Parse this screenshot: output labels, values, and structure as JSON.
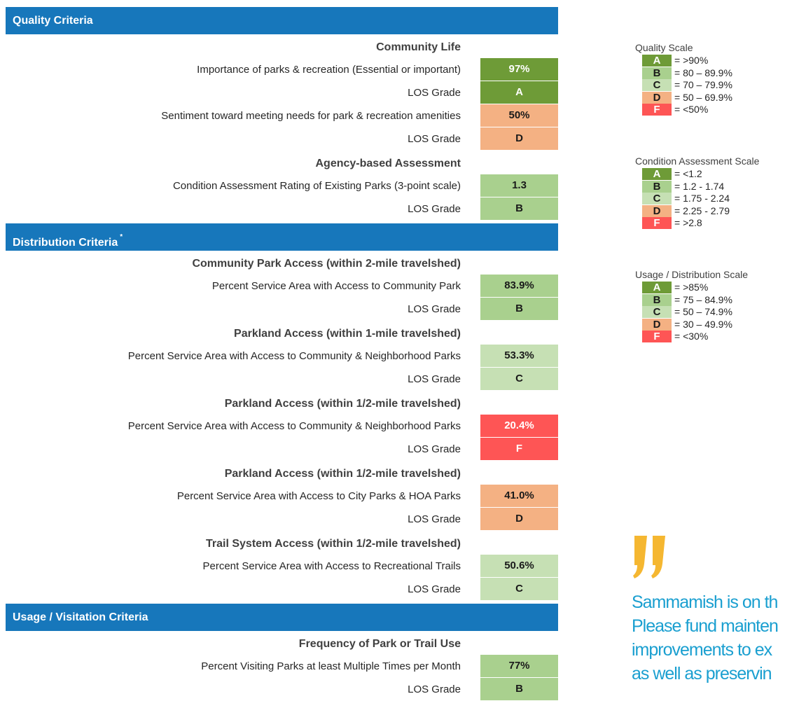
{
  "sections": [
    {
      "title": "Quality Criteria",
      "groups": [
        {
          "heading": "Community Life",
          "rows": [
            {
              "label": "Importance of parks & recreation (Essential or important)",
              "value": "97%",
              "grade_label": "LOS Grade",
              "grade": "A"
            },
            {
              "label": "Sentiment toward meeting needs for park & recreation amenities",
              "value": "50%",
              "grade_label": "LOS Grade",
              "grade": "D"
            }
          ]
        },
        {
          "heading": "Agency-based Assessment",
          "rows": [
            {
              "label": "Condition Assessment Rating of Existing Parks (3-point scale)",
              "value": "1.3",
              "grade_label": "LOS Grade",
              "grade": "B"
            }
          ]
        }
      ]
    },
    {
      "title": "Distribution Criteria",
      "footnote": "*",
      "groups": [
        {
          "heading": "Community Park Access (within 2-mile travelshed)",
          "rows": [
            {
              "label": "Percent Service Area with Access to Community Park",
              "value": "83.9%",
              "grade_label": "LOS Grade",
              "grade": "B"
            }
          ]
        },
        {
          "heading": "Parkland Access (within 1-mile travelshed)",
          "rows": [
            {
              "label": "Percent Service Area with Access to Community & Neighborhood Parks",
              "value": "53.3%",
              "grade_label": "LOS Grade",
              "grade": "C"
            }
          ]
        },
        {
          "heading": "Parkland Access (within 1/2-mile travelshed)",
          "rows": [
            {
              "label": "Percent Service Area with Access to Community & Neighborhood Parks",
              "value": "20.4%",
              "grade_label": "LOS Grade",
              "grade": "F"
            }
          ]
        },
        {
          "heading": "Parkland Access (within 1/2-mile travelshed)",
          "rows": [
            {
              "label": "Percent Service Area with Access to City Parks & HOA Parks",
              "value": "41.0%",
              "grade_label": "LOS Grade",
              "grade": "D"
            }
          ]
        },
        {
          "heading": "Trail System Access (within 1/2-mile travelshed)",
          "rows": [
            {
              "label": "Percent Service Area with Access to Recreational Trails",
              "value": "50.6%",
              "grade_label": "LOS Grade",
              "grade": "C"
            }
          ]
        }
      ]
    },
    {
      "title": "Usage / Visitation Criteria",
      "groups": [
        {
          "heading": "Frequency of Park or Trail Use",
          "rows": [
            {
              "label": "Percent Visiting Parks at least Multiple Times per Month",
              "value": "77%",
              "grade_label": "LOS Grade",
              "grade": "B"
            }
          ]
        }
      ]
    }
  ],
  "grade_colors": {
    "A": "#6e9b37",
    "B": "#a9d08e",
    "C": "#c6e0b4",
    "D": "#f4b183",
    "F": "#fe5555"
  },
  "scales": [
    {
      "title": "Quality Scale",
      "items": [
        {
          "grade": "A",
          "range": "= >90%"
        },
        {
          "grade": "B",
          "range": "= 80 – 89.9%"
        },
        {
          "grade": "C",
          "range": "= 70 – 79.9%"
        },
        {
          "grade": "D",
          "range": "= 50 – 69.9%"
        },
        {
          "grade": "F",
          "range": "= <50%"
        }
      ]
    },
    {
      "title": "Condition Assessment Scale",
      "items": [
        {
          "grade": "A",
          "range": "= <1.2"
        },
        {
          "grade": "B",
          "range": "= 1.2 - 1.74"
        },
        {
          "grade": "C",
          "range": "= 1.75 - 2.24"
        },
        {
          "grade": "D",
          "range": "= 2.25 - 2.79"
        },
        {
          "grade": "F",
          "range": "= >2.8"
        }
      ]
    },
    {
      "title": "Usage / Distribution Scale",
      "items": [
        {
          "grade": "A",
          "range": "= >85%"
        },
        {
          "grade": "B",
          "range": "= 75 – 84.9%"
        },
        {
          "grade": "C",
          "range": "= 50 – 74.9%"
        },
        {
          "grade": "D",
          "range": "= 30 – 49.9%"
        },
        {
          "grade": "F",
          "range": "= <30%"
        }
      ]
    }
  ],
  "quote": {
    "lines": [
      "Sammamish is on th",
      "Please fund mainten",
      "improvements to ex",
      "as well as preservin"
    ]
  }
}
